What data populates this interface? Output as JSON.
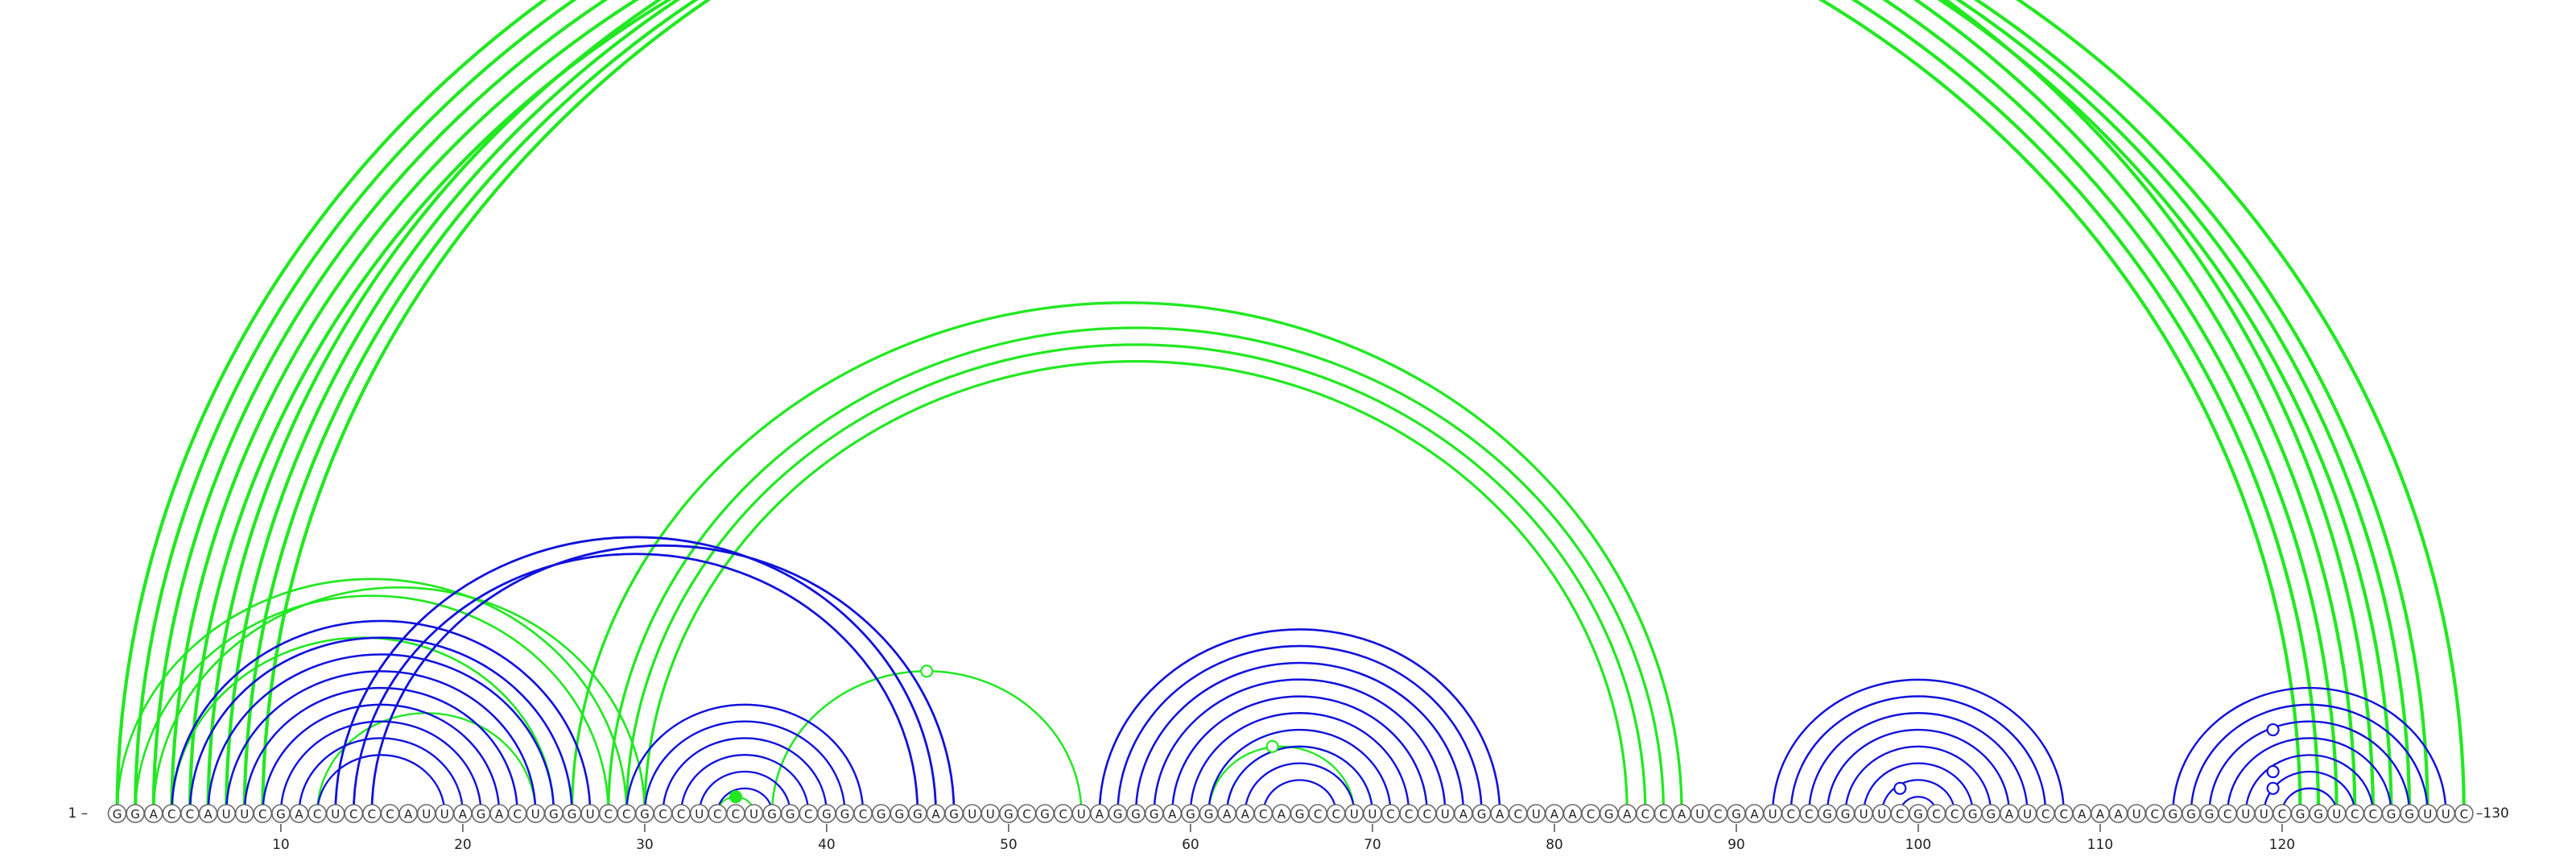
{
  "sequence": "GGACCAUUCGACUCCCAUUAGACUGGUCCGCCUCCUGGCGGCGGGAGUUGCGCUAGGGAGGAACAGCCUUCCCUAGACUAACGACCAUCGAUCCGGUUCGCCGGAUCCAAAUCGGGCUUCGGUCCGGUUC",
  "start_label": "1 –",
  "end_label": "–130",
  "ticks": [
    10,
    20,
    30,
    40,
    50,
    60,
    70,
    80,
    90,
    100,
    110,
    120
  ],
  "colors": {
    "blue": "#1010dd",
    "green": "#22e822",
    "circle_stroke": "#666666"
  },
  "pairs": {
    "blue": [
      [
        4,
        27
      ],
      [
        5,
        26
      ],
      [
        6,
        25
      ],
      [
        7,
        24
      ],
      [
        8,
        23
      ],
      [
        9,
        22
      ],
      [
        10,
        21
      ],
      [
        11,
        20
      ],
      [
        12,
        19
      ],
      [
        13,
        46
      ],
      [
        14,
        45
      ],
      [
        15,
        47
      ],
      [
        29,
        42
      ],
      [
        30,
        41
      ],
      [
        31,
        40
      ],
      [
        32,
        39
      ],
      [
        33,
        38
      ],
      [
        34,
        37
      ],
      [
        55,
        77
      ],
      [
        56,
        76
      ],
      [
        57,
        75
      ],
      [
        58,
        74
      ],
      [
        59,
        73
      ],
      [
        60,
        72
      ],
      [
        61,
        71
      ],
      [
        62,
        70
      ],
      [
        63,
        69
      ],
      [
        64,
        68
      ],
      [
        92,
        108
      ],
      [
        93,
        107
      ],
      [
        94,
        106
      ],
      [
        95,
        105
      ],
      [
        96,
        104
      ],
      [
        97,
        103
      ],
      [
        98,
        102
      ],
      [
        99,
        101
      ],
      [
        114,
        129
      ],
      [
        115,
        128
      ],
      [
        116,
        127
      ],
      [
        117,
        126
      ],
      [
        118,
        125
      ],
      [
        119,
        124
      ],
      [
        120,
        123
      ]
    ],
    "green": [
      [
        1,
        125
      ],
      [
        2,
        124
      ],
      [
        3,
        123
      ],
      [
        4,
        122
      ],
      [
        5,
        121
      ],
      [
        6,
        126
      ],
      [
        7,
        127
      ],
      [
        8,
        128
      ],
      [
        9,
        130
      ],
      [
        1,
        29
      ],
      [
        2,
        28
      ],
      [
        3,
        30
      ],
      [
        4,
        25
      ],
      [
        28,
        86
      ],
      [
        29,
        85
      ],
      [
        30,
        84
      ],
      [
        26,
        87
      ],
      [
        12,
        24
      ],
      [
        36,
        34
      ],
      [
        37,
        54
      ],
      [
        61,
        69
      ],
      [
        62,
        70
      ]
    ]
  },
  "markers": [
    {
      "pos": 35.0,
      "arc_half_width": 1,
      "color": "green",
      "filled": true
    },
    {
      "pos": 45.5,
      "arc_half_width": 8.5,
      "color": "green",
      "filled": false
    },
    {
      "pos": 64.5,
      "arc_half_width": 4,
      "color": "green",
      "filled": false
    },
    {
      "pos": 99.0,
      "arc_half_width": 1.5,
      "color": "blue",
      "filled": false
    },
    {
      "pos": 119.5,
      "arc_half_width": 1.5,
      "color": "blue",
      "filled": false
    },
    {
      "pos": 119.5,
      "arc_half_width": 2.5,
      "color": "blue",
      "filled": false
    },
    {
      "pos": 119.5,
      "arc_half_width": 5,
      "color": "blue",
      "filled": false
    }
  ]
}
